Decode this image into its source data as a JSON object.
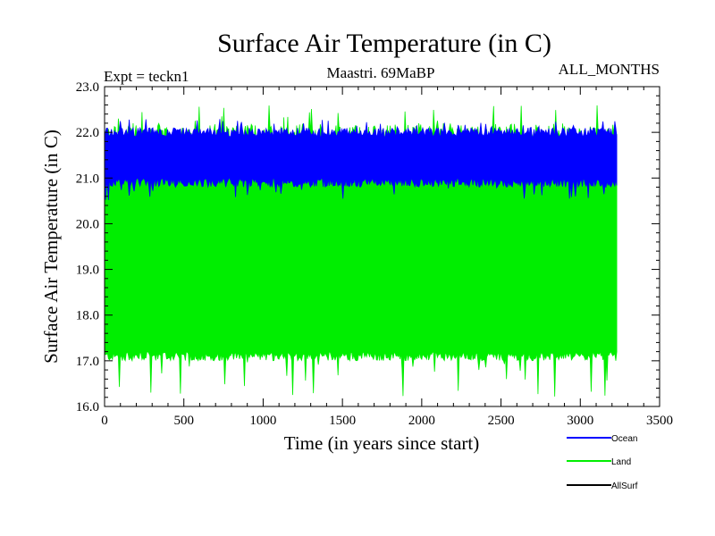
{
  "chart_data": {
    "type": "line",
    "title": "Surface Air Temperature (in C)",
    "subtitle_left": "Expt = teckn1",
    "subtitle_center": "Maastri.  69MaBP",
    "subtitle_right": "ALL_MONTHS",
    "xlabel": "Time (in years since start)",
    "ylabel": "Surface Air Temperature (in C)",
    "xlim": [
      0,
      3500
    ],
    "ylim": [
      16.0,
      23.0
    ],
    "x_ticks": [
      0,
      500,
      1000,
      1500,
      2000,
      2500,
      3000,
      3500
    ],
    "x_tick_labels": [
      "0",
      "500",
      "1000",
      "1500",
      "2000",
      "2500",
      "3000",
      "3500"
    ],
    "y_ticks": [
      16.0,
      17.0,
      18.0,
      19.0,
      20.0,
      21.0,
      22.0,
      23.0
    ],
    "y_tick_labels": [
      "16.0",
      "17.0",
      "18.0",
      "19.0",
      "20.0",
      "21.0",
      "22.0",
      "23.0"
    ],
    "x_data_range": [
      0,
      3230
    ],
    "series": [
      {
        "name": "Land",
        "color": "#00ee00",
        "band_low": [
          17.0,
          17.2
        ],
        "band_high": [
          21.6,
          22.2
        ],
        "min": 16.2,
        "max": 22.6
      },
      {
        "name": "Ocean",
        "color": "#0000ff",
        "band_low": [
          20.8,
          21.0
        ],
        "band_high": [
          21.9,
          22.1
        ],
        "min": 20.5,
        "max": 22.3
      },
      {
        "name": "AllSurf",
        "color": "#000000"
      }
    ],
    "legend": [
      {
        "label": "Ocean",
        "color": "#0000ff"
      },
      {
        "label": "Land",
        "color": "#00ee00"
      },
      {
        "label": "AllSurf",
        "color": "#000000"
      }
    ]
  }
}
